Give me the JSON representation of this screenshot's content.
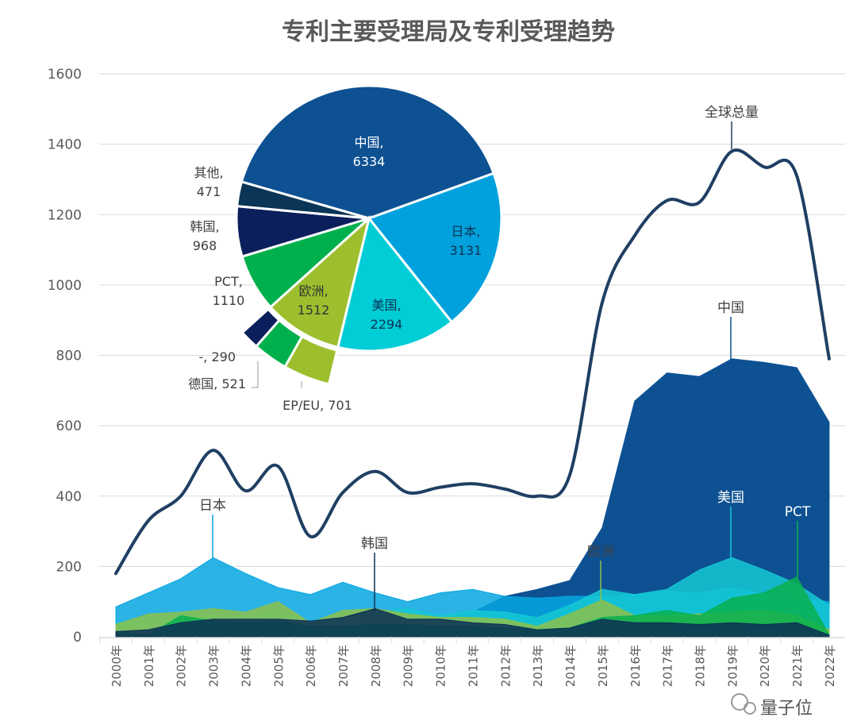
{
  "chart_data": {
    "type": "area",
    "title": "专利主要受理局及专利受理趋势",
    "xlabel": "",
    "ylabel": "",
    "ylim": [
      0,
      1600
    ],
    "yticks": [
      0,
      200,
      400,
      600,
      800,
      1000,
      1200,
      1400,
      1600
    ],
    "grid": true,
    "categories": [
      "2000年",
      "2001年",
      "2002年",
      "2003年",
      "2004年",
      "2005年",
      "2006年",
      "2007年",
      "2008年",
      "2009年",
      "2010年",
      "2011年",
      "2012年",
      "2013年",
      "2014年",
      "2015年",
      "2016年",
      "2017年",
      "2018年",
      "2019年",
      "2020年",
      "2021年",
      "2022年"
    ],
    "line_series": {
      "name": "全球总量",
      "color": "#1f3f63",
      "values": [
        180,
        330,
        400,
        530,
        415,
        485,
        285,
        410,
        470,
        410,
        425,
        435,
        420,
        400,
        460,
        950,
        1140,
        1240,
        1235,
        1380,
        1335,
        1310,
        790
      ]
    },
    "series": [
      {
        "name": "中国",
        "color": "#0d5193",
        "values": [
          10,
          12,
          15,
          18,
          18,
          20,
          20,
          25,
          30,
          35,
          50,
          70,
          115,
          135,
          160,
          310,
          670,
          750,
          740,
          790,
          780,
          765,
          610
        ]
      },
      {
        "name": "日本",
        "color": "#06a6e0",
        "values": [
          85,
          125,
          165,
          225,
          180,
          140,
          120,
          155,
          125,
          100,
          125,
          135,
          115,
          110,
          115,
          115,
          120,
          130,
          125,
          140,
          120,
          110,
          100
        ]
      },
      {
        "name": "美国",
        "color": "#16c8d4",
        "values": [
          40,
          55,
          60,
          65,
          60,
          75,
          45,
          55,
          70,
          80,
          60,
          75,
          70,
          55,
          90,
          135,
          120,
          135,
          190,
          225,
          190,
          150,
          90
        ]
      },
      {
        "name": "欧洲",
        "color": "#8cc04b",
        "values": [
          35,
          65,
          70,
          80,
          70,
          100,
          40,
          75,
          80,
          65,
          55,
          55,
          50,
          30,
          65,
          105,
          60,
          60,
          65,
          70,
          75,
          60,
          20
        ]
      },
      {
        "name": "PCT",
        "color": "#09b04f",
        "values": [
          15,
          5,
          60,
          45,
          40,
          45,
          30,
          30,
          35,
          35,
          30,
          30,
          25,
          20,
          25,
          55,
          60,
          75,
          60,
          110,
          125,
          170,
          5
        ]
      },
      {
        "name": "韩国",
        "color": "#0c2f55",
        "values": [
          15,
          20,
          40,
          50,
          50,
          50,
          45,
          55,
          80,
          50,
          50,
          40,
          35,
          20,
          25,
          50,
          40,
          40,
          35,
          40,
          35,
          40,
          5
        ]
      }
    ],
    "pie": {
      "type": "pie",
      "slices": [
        {
          "name": "中国",
          "value": 6334,
          "color": "#0d5193"
        },
        {
          "name": "日本",
          "value": 3131,
          "color": "#00a1dc"
        },
        {
          "name": "美国",
          "value": 2294,
          "color": "#00cdd6"
        },
        {
          "name": "欧洲",
          "value": 1512,
          "color": "#9dbf2e"
        },
        {
          "name": "PCT",
          "value": 1110,
          "color": "#00b04c"
        },
        {
          "name": "韩国",
          "value": 968,
          "color": "#0a1f5c"
        },
        {
          "name": "其他",
          "value": 471,
          "color": "#0a3556"
        }
      ],
      "europe_breakdown": [
        {
          "name": "EP/EU",
          "value": 701,
          "color": "#9dbf2e"
        },
        {
          "name": "德国",
          "value": 521,
          "color": "#00b04c"
        },
        {
          "name": "-",
          "value": 290,
          "color": "#0a1f5c"
        }
      ]
    }
  },
  "watermark": "量子位"
}
